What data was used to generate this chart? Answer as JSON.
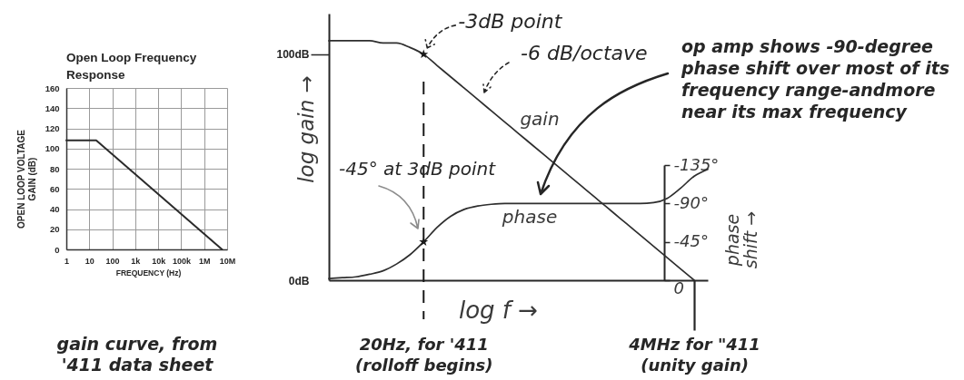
{
  "chart_data": [
    {
      "type": "line",
      "title": "Open Loop Frequency\nResponse",
      "xlabel": "FREQUENCY (Hz)",
      "ylabel": "OPEN LOOP VOLTAGE\nGAIN (dB)",
      "log": "x",
      "x": [
        1,
        20,
        6000000
      ],
      "values": [
        108,
        108,
        0
      ],
      "color": "#2b2b2b",
      "xlim": [
        1,
        10000000
      ],
      "xticks": [
        1,
        10,
        100,
        {
          "value": 1000,
          "label": "1k"
        },
        {
          "value": 10000,
          "label": "10k"
        },
        {
          "value": 100000,
          "label": "100k"
        },
        {
          "value": 1000000,
          "label": "1M"
        },
        {
          "value": 10000000,
          "label": "10M"
        }
      ],
      "ylim": [
        0,
        160
      ],
      "yticks": [
        0,
        20,
        40,
        60,
        80,
        100,
        120,
        140,
        160
      ],
      "grid": true,
      "annotations": [
        "gain curve, from\n'411 data sheet"
      ]
    },
    {
      "type": "line",
      "xlabel": "log f →",
      "ylabel": "log gain →",
      "y2label": "phase\nshift →",
      "categories": [
        null,
        null,
        null,
        null,
        null,
        null,
        null,
        "20Hz, for '411\n(rolloff begins)",
        null,
        null,
        null,
        null,
        null,
        null,
        null,
        null,
        null,
        null,
        null,
        null,
        null,
        null,
        null,
        null,
        null,
        null,
        null,
        "4MHz for \"411\n(unity gain)",
        null
      ],
      "ylim": [
        0,
        118
      ],
      "yticks": [
        {
          "value": 0,
          "label": "0dB"
        },
        {
          "value": 100,
          "label": "100dB"
        }
      ],
      "y2lim": [
        0,
        -135
      ],
      "y2ticks": [
        0,
        {
          "value": -45,
          "label": "-45°"
        },
        {
          "value": -90,
          "label": "-90°"
        },
        {
          "value": -135,
          "label": "-135°"
        }
      ],
      "series": [
        {
          "name": "gain",
          "color": "#2e2e2e",
          "values": [
            106,
            106,
            106,
            106,
            105,
            105,
            103,
            100,
            95,
            90,
            85,
            80,
            75,
            70,
            65,
            60,
            55,
            50,
            45,
            40,
            35,
            30,
            25,
            20,
            15,
            10,
            5,
            0,
            null
          ]
        },
        {
          "name": "phase",
          "color": "#2e2e2e",
          "axis": "y2",
          "values": [
            -2,
            -3,
            -4,
            -7,
            -11,
            -19,
            -30,
            -45,
            -62,
            -75,
            -83,
            -87,
            -89,
            -90,
            -90,
            -90,
            -90,
            -90,
            -90,
            -90,
            -90,
            -90,
            -90,
            -90,
            -91,
            -96,
            -108,
            -122,
            -130
          ]
        },
        {
          "type": "scatter",
          "marker": "star",
          "color": "#1a1a1a",
          "values": [
            null,
            null,
            null,
            null,
            null,
            null,
            null,
            100,
            null,
            null,
            null,
            null,
            null,
            null,
            null,
            null,
            null,
            null,
            null,
            null,
            null,
            null,
            null,
            null,
            null,
            null,
            null,
            null,
            null
          ]
        },
        {
          "type": "scatter",
          "marker": "star",
          "color": "#1a1a1a",
          "axis": "y2",
          "values": [
            null,
            null,
            null,
            null,
            null,
            null,
            null,
            -45,
            null,
            null,
            null,
            null,
            null,
            null,
            null,
            null,
            null,
            null,
            null,
            null,
            null,
            null,
            null,
            null,
            null,
            null,
            null,
            null,
            null
          ]
        }
      ],
      "ref_lines": [
        {
          "axis": "x",
          "value": "20Hz, for '411\n(rolloff begins)",
          "line_style": "dashed",
          "color": "#1a1a1a"
        }
      ],
      "annotations": [
        {
          "text": "-3dB point",
          "x": "20Hz, for '411\n(rolloff begins)",
          "y": 100
        },
        "-6 dB/octave",
        "-45° at 3dB point",
        "op amp shows -90-degree\nphase shift over most of its\nfrequency range-andmore\nnear its max frequency"
      ]
    }
  ]
}
